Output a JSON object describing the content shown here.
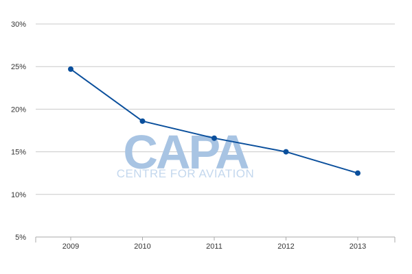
{
  "chart_data": {
    "type": "line",
    "x": [
      "2009",
      "2010",
      "2011",
      "2012",
      "2013"
    ],
    "series": [
      {
        "values": [
          24.7,
          18.6,
          16.6,
          15.0,
          12.5
        ]
      }
    ],
    "y_ticks": [
      "30%",
      "25%",
      "20%",
      "15%",
      "10%",
      "5%"
    ],
    "y_tick_values": [
      30,
      25,
      20,
      15,
      10,
      5
    ],
    "ylim": [
      5,
      30
    ],
    "grid": true,
    "line_color": "#0a4f9c",
    "grid_color": "#c8c8c8"
  },
  "watermark": {
    "logo_text": "CAPA",
    "tagline": "CENTRE FOR AVIATION",
    "color": "#a8c4e3",
    "tagline_color": "#c4d8ee"
  }
}
